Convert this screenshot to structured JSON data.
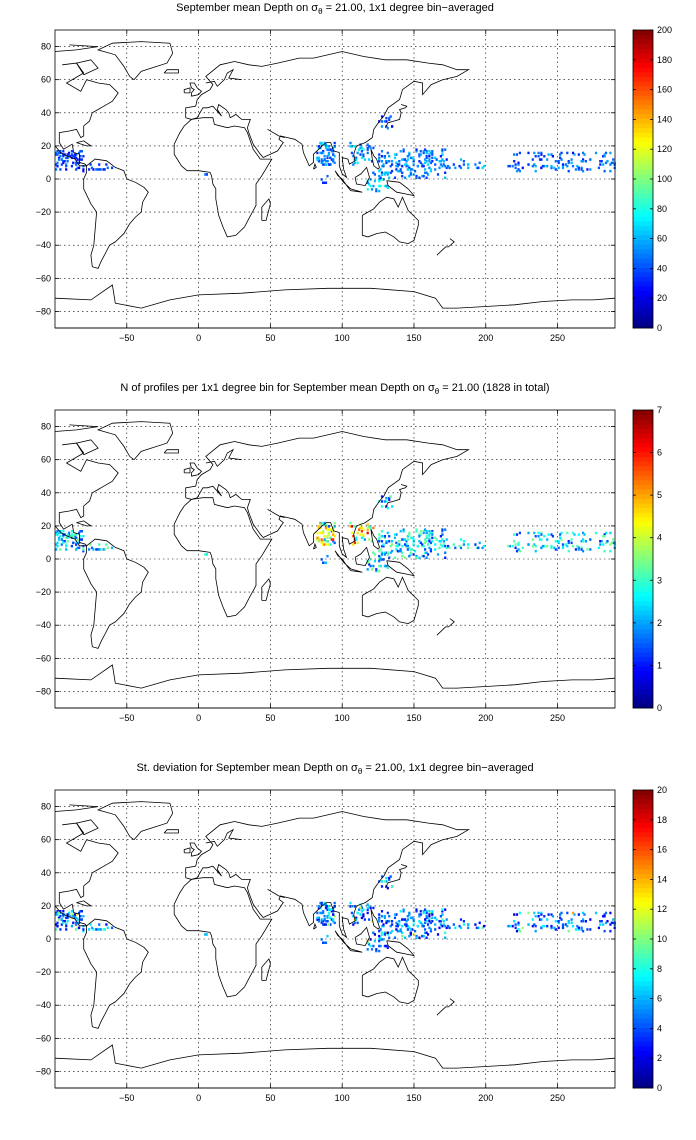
{
  "panels": [
    {
      "title_pre": "September mean Depth on σ",
      "title_sub": "θ",
      "title_post": " = 21.00, 1x1 degree bin−averaged",
      "colorbar": {
        "min": 0,
        "max": 200,
        "ticks": [
          "0",
          "20",
          "40",
          "60",
          "80",
          "100",
          "120",
          "140",
          "160",
          "180",
          "200"
        ]
      },
      "field": "depth"
    },
    {
      "title_pre": "N of profiles per 1x1 degree bin for September mean Depth on σ",
      "title_sub": "θ",
      "title_post": " = 21.00 (1828 in total)",
      "colorbar": {
        "min": 0,
        "max": 7,
        "ticks": [
          "0",
          "1",
          "2",
          "3",
          "4",
          "5",
          "6",
          "7"
        ]
      },
      "field": "count"
    },
    {
      "title_pre": "St. deviation for September mean Depth on σ",
      "title_sub": "θ",
      "title_post": " = 21.00, 1x1 degree bin−averaged",
      "colorbar": {
        "min": 0,
        "max": 20,
        "ticks": [
          "0",
          "2",
          "4",
          "6",
          "8",
          "10",
          "12",
          "14",
          "16",
          "18",
          "20"
        ]
      },
      "field": "std"
    }
  ],
  "map": {
    "lon_range": [
      -100,
      290
    ],
    "lat_range": [
      -90,
      90
    ],
    "x_ticks": [
      "-50",
      "0",
      "50",
      "100",
      "150",
      "200",
      "250"
    ],
    "y_ticks": [
      "80",
      "60",
      "40",
      "20",
      "0",
      "-20",
      "-40",
      "-60",
      "-80"
    ],
    "grid": true,
    "colormap": "jet"
  }
}
